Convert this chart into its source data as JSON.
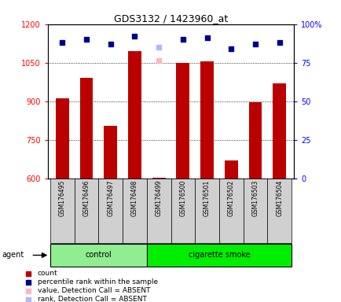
{
  "title": "GDS3132 / 1423960_at",
  "samples": [
    "GSM176495",
    "GSM176496",
    "GSM176497",
    "GSM176498",
    "GSM176499",
    "GSM176500",
    "GSM176501",
    "GSM176502",
    "GSM176503",
    "GSM176504"
  ],
  "counts": [
    910,
    990,
    805,
    1095,
    603,
    1050,
    1055,
    668,
    895,
    970
  ],
  "percentile_ranks": [
    88,
    90,
    87,
    92,
    null,
    90,
    91,
    84,
    87,
    88
  ],
  "absent_value": [
    null,
    null,
    null,
    null,
    1058,
    null,
    null,
    null,
    null,
    null
  ],
  "absent_rank": [
    null,
    null,
    null,
    null,
    85,
    null,
    null,
    null,
    null,
    null
  ],
  "ylim_left": [
    600,
    1200
  ],
  "ylim_right": [
    0,
    100
  ],
  "yticks_left": [
    600,
    750,
    900,
    1050,
    1200
  ],
  "ytick_labels_left": [
    "600",
    "750",
    "900",
    "1050",
    "1200"
  ],
  "yticks_right": [
    0,
    25,
    50,
    75,
    100
  ],
  "ytick_labels_right": [
    "0",
    "25",
    "50",
    "75",
    "100%"
  ],
  "bar_color": "#bb0000",
  "dot_color_present": "#00008b",
  "dot_color_absent_value": "#ffb6c1",
  "dot_color_absent_rank": "#b0b8ff",
  "control_label": "control",
  "smoke_label": "cigarette smoke",
  "agent_label": "agent",
  "control_color": "#90ee90",
  "smoke_color": "#00ee00",
  "xtick_bg": "#d0d0d0",
  "legend_items": [
    {
      "label": "count",
      "color": "#bb0000"
    },
    {
      "label": "percentile rank within the sample",
      "color": "#00008b"
    },
    {
      "label": "value, Detection Call = ABSENT",
      "color": "#ffb6c1"
    },
    {
      "label": "rank, Detection Call = ABSENT",
      "color": "#b0b8ff"
    }
  ],
  "fig_width": 4.35,
  "fig_height": 3.84,
  "dpi": 100
}
